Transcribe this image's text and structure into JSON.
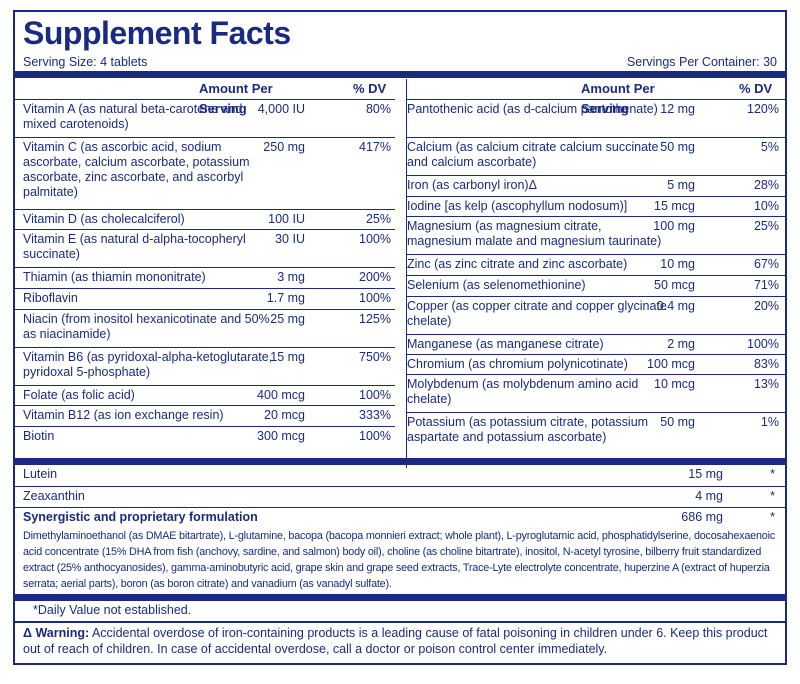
{
  "title": "Supplement Facts",
  "serving_size": "Serving Size: 4 tablets",
  "servings_per_container": "Servings Per Container: 30",
  "header": {
    "amount_label": "Amount Per Serving",
    "dv_label": "% DV"
  },
  "left_nutrients": [
    {
      "name": "Vitamin A (as natural beta-carotene and mixed carotenoids)",
      "amount": "4,000 IU",
      "dv": "80%"
    },
    {
      "name": "Vitamin C (as ascorbic acid, sodium ascorbate, calcium ascorbate, potassium ascorbate, zinc ascorbate, and ascorbyl palmitate)",
      "amount": "250 mg",
      "dv": "417%"
    },
    {
      "name": "Vitamin D (as cholecalciferol)",
      "amount": "100 IU",
      "dv": "25%"
    },
    {
      "name": "Vitamin E (as natural d-alpha-tocopheryl succinate)",
      "amount": "30 IU",
      "dv": "100%"
    },
    {
      "name": "Thiamin (as thiamin mononitrate)",
      "amount": "3 mg",
      "dv": "200%"
    },
    {
      "name": "Riboflavin",
      "amount": "1.7 mg",
      "dv": "100%"
    },
    {
      "name": "Niacin (from inositol hexanicotinate and 50% as niacinamide)",
      "amount": "25 mg",
      "dv": "125%"
    },
    {
      "name": "Vitamin B6 (as pyridoxal-alpha-ketoglutarate, pyridoxal 5-phosphate)",
      "amount": "15 mg",
      "dv": "750%"
    },
    {
      "name": "Folate (as folic acid)",
      "amount": "400 mcg",
      "dv": "100%"
    },
    {
      "name": "Vitamin B12 (as ion exchange resin)",
      "amount": "20 mcg",
      "dv": "333%"
    },
    {
      "name": "Biotin",
      "amount": "300 mcg",
      "dv": "100%"
    }
  ],
  "right_nutrients": [
    {
      "name": "Pantothenic acid (as d-calcium pantothenate)",
      "amount": "12 mg",
      "dv": "120%"
    },
    {
      "name": "Calcium (as calcium citrate calcium succinate and calcium ascorbate)",
      "amount": "50 mg",
      "dv": "5%"
    },
    {
      "name": "Iron (as carbonyl iron)Δ",
      "amount": "5 mg",
      "dv": "28%"
    },
    {
      "name": "Iodine [as kelp (ascophyllum nodosum)]",
      "amount": "15 mcg",
      "dv": "10%"
    },
    {
      "name": "Magnesium (as magnesium citrate, magnesium malate and magnesium taurinate)",
      "amount": "100 mg",
      "dv": "25%"
    },
    {
      "name": "Zinc (as zinc citrate and zinc ascorbate)",
      "amount": "10 mg",
      "dv": "67%"
    },
    {
      "name": "Selenium (as selenomethionine)",
      "amount": "50 mcg",
      "dv": "71%"
    },
    {
      "name": "Copper (as copper citrate and copper glycinate chelate)",
      "amount": "0.4 mg",
      "dv": "20%"
    },
    {
      "name": "Manganese (as manganese citrate)",
      "amount": "2 mg",
      "dv": "100%"
    },
    {
      "name": "Chromium (as chromium polynicotinate)",
      "amount": "100 mcg",
      "dv": "83%"
    },
    {
      "name": "Molybdenum (as molybdenum amino acid chelate)",
      "amount": "10 mcg",
      "dv": "13%"
    },
    {
      "name": "Potassium (as potassium citrate, potassium aspartate and potassium ascorbate)",
      "amount": "50 mg",
      "dv": "1%"
    }
  ],
  "lutein": {
    "name": "Lutein",
    "amount": "15 mg",
    "dv": "*"
  },
  "zeaxanthin": {
    "name": "Zeaxanthin",
    "amount": "4 mg",
    "dv": "*"
  },
  "proprietary": {
    "name": "Synergistic and proprietary formulation",
    "amount": "686 mg",
    "dv": "*",
    "ingredients": "Dimethylaminoethanol (as DMAE bitartrate), L-glutamine, bacopa (bacopa monnieri extract; whole plant), L-pyroglutamic acid, phosphatidylserine, docosahexaenoic acid concentrate (15% DHA from fish (anchovy, sardine, and salmon) body oil), choline (as choline bitartrate), inositol, N-acetyl tyrosine, bilberry fruit standardized extract (25% anthocyanosides), gamma-aminobutyric acid, grape skin and grape seed extracts, Trace-Lyte electrolyte concentrate, huperzine A (extract of huperzia serrata; aerial parts), boron (as boron citrate) and vanadium (as vanadyl sulfate)."
  },
  "footnote": "*Daily Value not established.",
  "warning_label": "Δ Warning:",
  "warning_text": "Accidental overdose of iron-containing products is a leading cause of fatal poisoning in children under 6. Keep this product out of reach of children. In case of accidental overdose, call a doctor or poison control center immediately.",
  "colors": {
    "ink": "#1a2a80",
    "background": "#ffffff"
  }
}
